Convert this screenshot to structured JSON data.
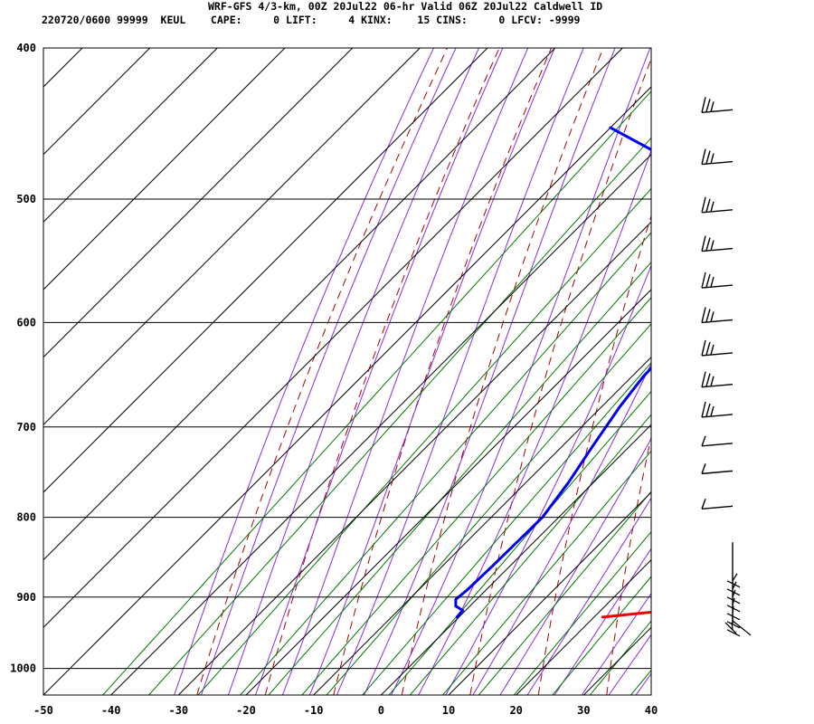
{
  "header": {
    "line1": "WRF-GFS 4/3-km, 00Z 20Jul22 06-hr Valid 06Z 20Jul22 Caldwell ID",
    "line2": "220720/0600 99999  KEUL    CAPE:     0 LIFT:     4 KINX:    15 CINS:     0 LFCV: -9999"
  },
  "colors": {
    "temperature": "#ee0000",
    "dewpoint": "#0000ee",
    "dry_adiabat": "#aa0000",
    "moist_adiabat": "#8a2be2",
    "mixing_ratio": "#007700",
    "grid": "#000000"
  },
  "chart_data": {
    "type": "line",
    "title": "WRF-GFS 4/3-km, 00Z 20Jul22 06-hr Valid 06Z 20Jul22 Caldwell ID",
    "chart_kind": "skew-T log-P sounding",
    "xlabel": "",
    "ylabel": "",
    "x_ticks": [
      -50,
      -40,
      -30,
      -20,
      -10,
      0,
      10,
      20,
      30,
      40
    ],
    "x_tick_labels": [
      "-50",
      "-40",
      "-30",
      "-20",
      "-10",
      "0",
      "10",
      "20",
      "30",
      "40"
    ],
    "y_ticks": [
      400,
      500,
      600,
      700,
      800,
      900,
      1000
    ],
    "y_tick_labels": [
      "400",
      "500",
      "600",
      "700",
      "800",
      "900",
      "1000"
    ],
    "xlim": [
      -50,
      40
    ],
    "ylim": [
      1040,
      400
    ],
    "y_scale": "log",
    "grid": true,
    "series": [
      {
        "kind": "temperature",
        "points": [
          {
            "p": 927,
            "t": 21.3
          },
          {
            "p": 922,
            "t": 26.0
          },
          {
            "p": 918,
            "t": 30.0
          },
          {
            "p": 913,
            "t": 31.8
          },
          {
            "p": 905,
            "t": 32.3
          },
          {
            "p": 890,
            "t": 30.4
          },
          {
            "p": 870,
            "t": 29.4
          },
          {
            "p": 830,
            "t": 26.2
          },
          {
            "p": 800,
            "t": 22.5
          },
          {
            "p": 750,
            "t": 16.0
          },
          {
            "p": 700,
            "t": 9.4
          },
          {
            "p": 650,
            "t": 3.0
          },
          {
            "p": 600,
            "t": -2.2
          },
          {
            "p": 555,
            "t": -4.4
          },
          {
            "p": 500,
            "t": -8.6
          },
          {
            "p": 450,
            "t": -11.2
          }
        ]
      },
      {
        "kind": "dewpoint",
        "points": [
          {
            "p": 927,
            "t": -0.3
          },
          {
            "p": 922,
            "t": -0.4
          },
          {
            "p": 918,
            "t": -0.4
          },
          {
            "p": 912,
            "t": -2.1
          },
          {
            "p": 903,
            "t": -3.1
          },
          {
            "p": 890,
            "t": -2.8
          },
          {
            "p": 860,
            "t": -2.6
          },
          {
            "p": 800,
            "t": -2.4
          },
          {
            "p": 760,
            "t": -3.7
          },
          {
            "p": 720,
            "t": -5.5
          },
          {
            "p": 680,
            "t": -7.3
          },
          {
            "p": 650,
            "t": -8.3
          },
          {
            "p": 620,
            "t": -8.6
          },
          {
            "p": 600,
            "t": -8.0
          },
          {
            "p": 555,
            "t": -9.4
          },
          {
            "p": 500,
            "t": -19.8
          },
          {
            "p": 450,
            "t": -50.0
          }
        ]
      }
    ],
    "wind_barbs": [
      {
        "p": 440,
        "kind": "full_barbs"
      },
      {
        "p": 475,
        "kind": "full_barbs"
      },
      {
        "p": 510,
        "kind": "full_barbs"
      },
      {
        "p": 540,
        "kind": "full_barbs"
      },
      {
        "p": 570,
        "kind": "full_barbs"
      },
      {
        "p": 600,
        "kind": "full_barbs"
      },
      {
        "p": 630,
        "kind": "full_barbs"
      },
      {
        "p": 660,
        "kind": "full_barbs"
      },
      {
        "p": 690,
        "kind": "full_barbs"
      },
      {
        "p": 720,
        "kind": "half_barb"
      },
      {
        "p": 750,
        "kind": "half_barb"
      },
      {
        "p": 790,
        "kind": "half_barb"
      }
    ]
  }
}
